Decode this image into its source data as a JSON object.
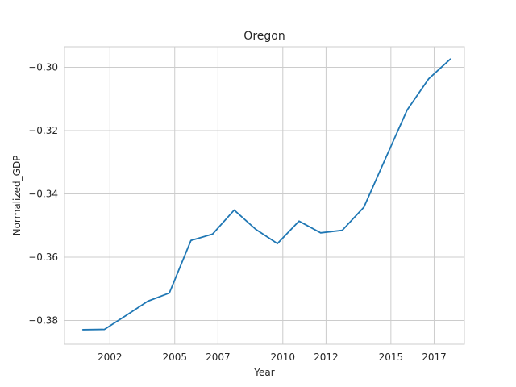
{
  "chart_data": {
    "type": "line",
    "title": "Oregon",
    "xlabel": "Year",
    "ylabel": "Normalized_GDP",
    "xlim": [
      1999.9,
      2018.4
    ],
    "ylim": [
      -0.3875,
      -0.2935
    ],
    "x_ticks": [
      2002,
      2005,
      2007,
      2010,
      2012,
      2015,
      2017
    ],
    "x_tick_labels": [
      "2002",
      "2005",
      "2007",
      "2010",
      "2012",
      "2015",
      "2017"
    ],
    "y_ticks": [
      -0.3,
      -0.32,
      -0.34,
      -0.36,
      -0.38
    ],
    "y_tick_labels": [
      "−0.30",
      "−0.32",
      "−0.34",
      "−0.36",
      "−0.38"
    ],
    "grid": true,
    "series": [
      {
        "color": "#1f77b4",
        "x": [
          2000.75,
          2001.75,
          2002.75,
          2003.75,
          2004.75,
          2005.75,
          2006.75,
          2007.75,
          2008.75,
          2009.75,
          2010.75,
          2011.75,
          2012.75,
          2013.75,
          2014.75,
          2015.75,
          2016.75,
          2017.75
        ],
        "y": [
          -0.3829,
          -0.3828,
          -0.3784,
          -0.3739,
          -0.3713,
          -0.3547,
          -0.3527,
          -0.3451,
          -0.3512,
          -0.3557,
          -0.3486,
          -0.3523,
          -0.3515,
          -0.3442,
          -0.3288,
          -0.3135,
          -0.3036,
          -0.2974
        ]
      }
    ]
  }
}
